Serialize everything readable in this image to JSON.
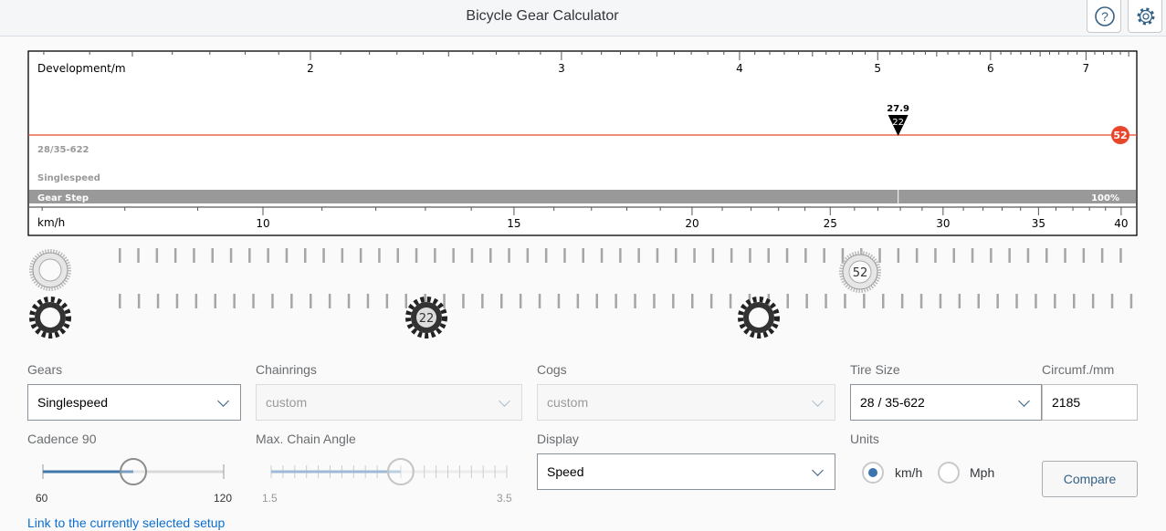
{
  "header": {
    "title": "Bicycle Gear Calculator",
    "help_icon": "question-circle-icon",
    "settings_icon": "gear-icon"
  },
  "chart": {
    "dev_label": "Development/m",
    "dev_ticks": [
      "2",
      "3",
      "4",
      "5",
      "6",
      "7"
    ],
    "speed_label": "km/h",
    "speed_ticks": [
      "10",
      "15",
      "20",
      "25",
      "30",
      "35",
      "40"
    ],
    "tire_label": "28/35-622",
    "gears_label": "Singlespeed",
    "gear_step_label": "Gear Step",
    "gear_step_value": "100%",
    "marker_speed": "27.9",
    "marker_cog": "22",
    "chainring_badge": "52",
    "marker_speed_kmh": 27.9,
    "chainring_color": "#e8462b"
  },
  "gears_strip": {
    "chainring": "52",
    "cog": "22"
  },
  "form": {
    "gears": {
      "label": "Gears",
      "value": "Singlespeed"
    },
    "chainrings": {
      "label": "Chainrings",
      "value": "custom"
    },
    "cogs": {
      "label": "Cogs",
      "value": "custom"
    },
    "tire": {
      "label": "Tire Size",
      "value": "28 / 35-622"
    },
    "circumf": {
      "label": "Circumf./mm",
      "value": "2185"
    },
    "cadence": {
      "label": "Cadence 90",
      "min": "60",
      "max": "120",
      "value": 90
    },
    "chain_angle": {
      "label": "Max. Chain Angle",
      "min": "1.5",
      "max": "3.5",
      "value": 2.6
    },
    "display": {
      "label": "Display",
      "value": "Speed"
    },
    "units": {
      "label": "Units",
      "kmh": "km/h",
      "mph": "Mph",
      "selected": "km/h"
    },
    "compare": "Compare",
    "link": "Link to the currently selected setup"
  }
}
